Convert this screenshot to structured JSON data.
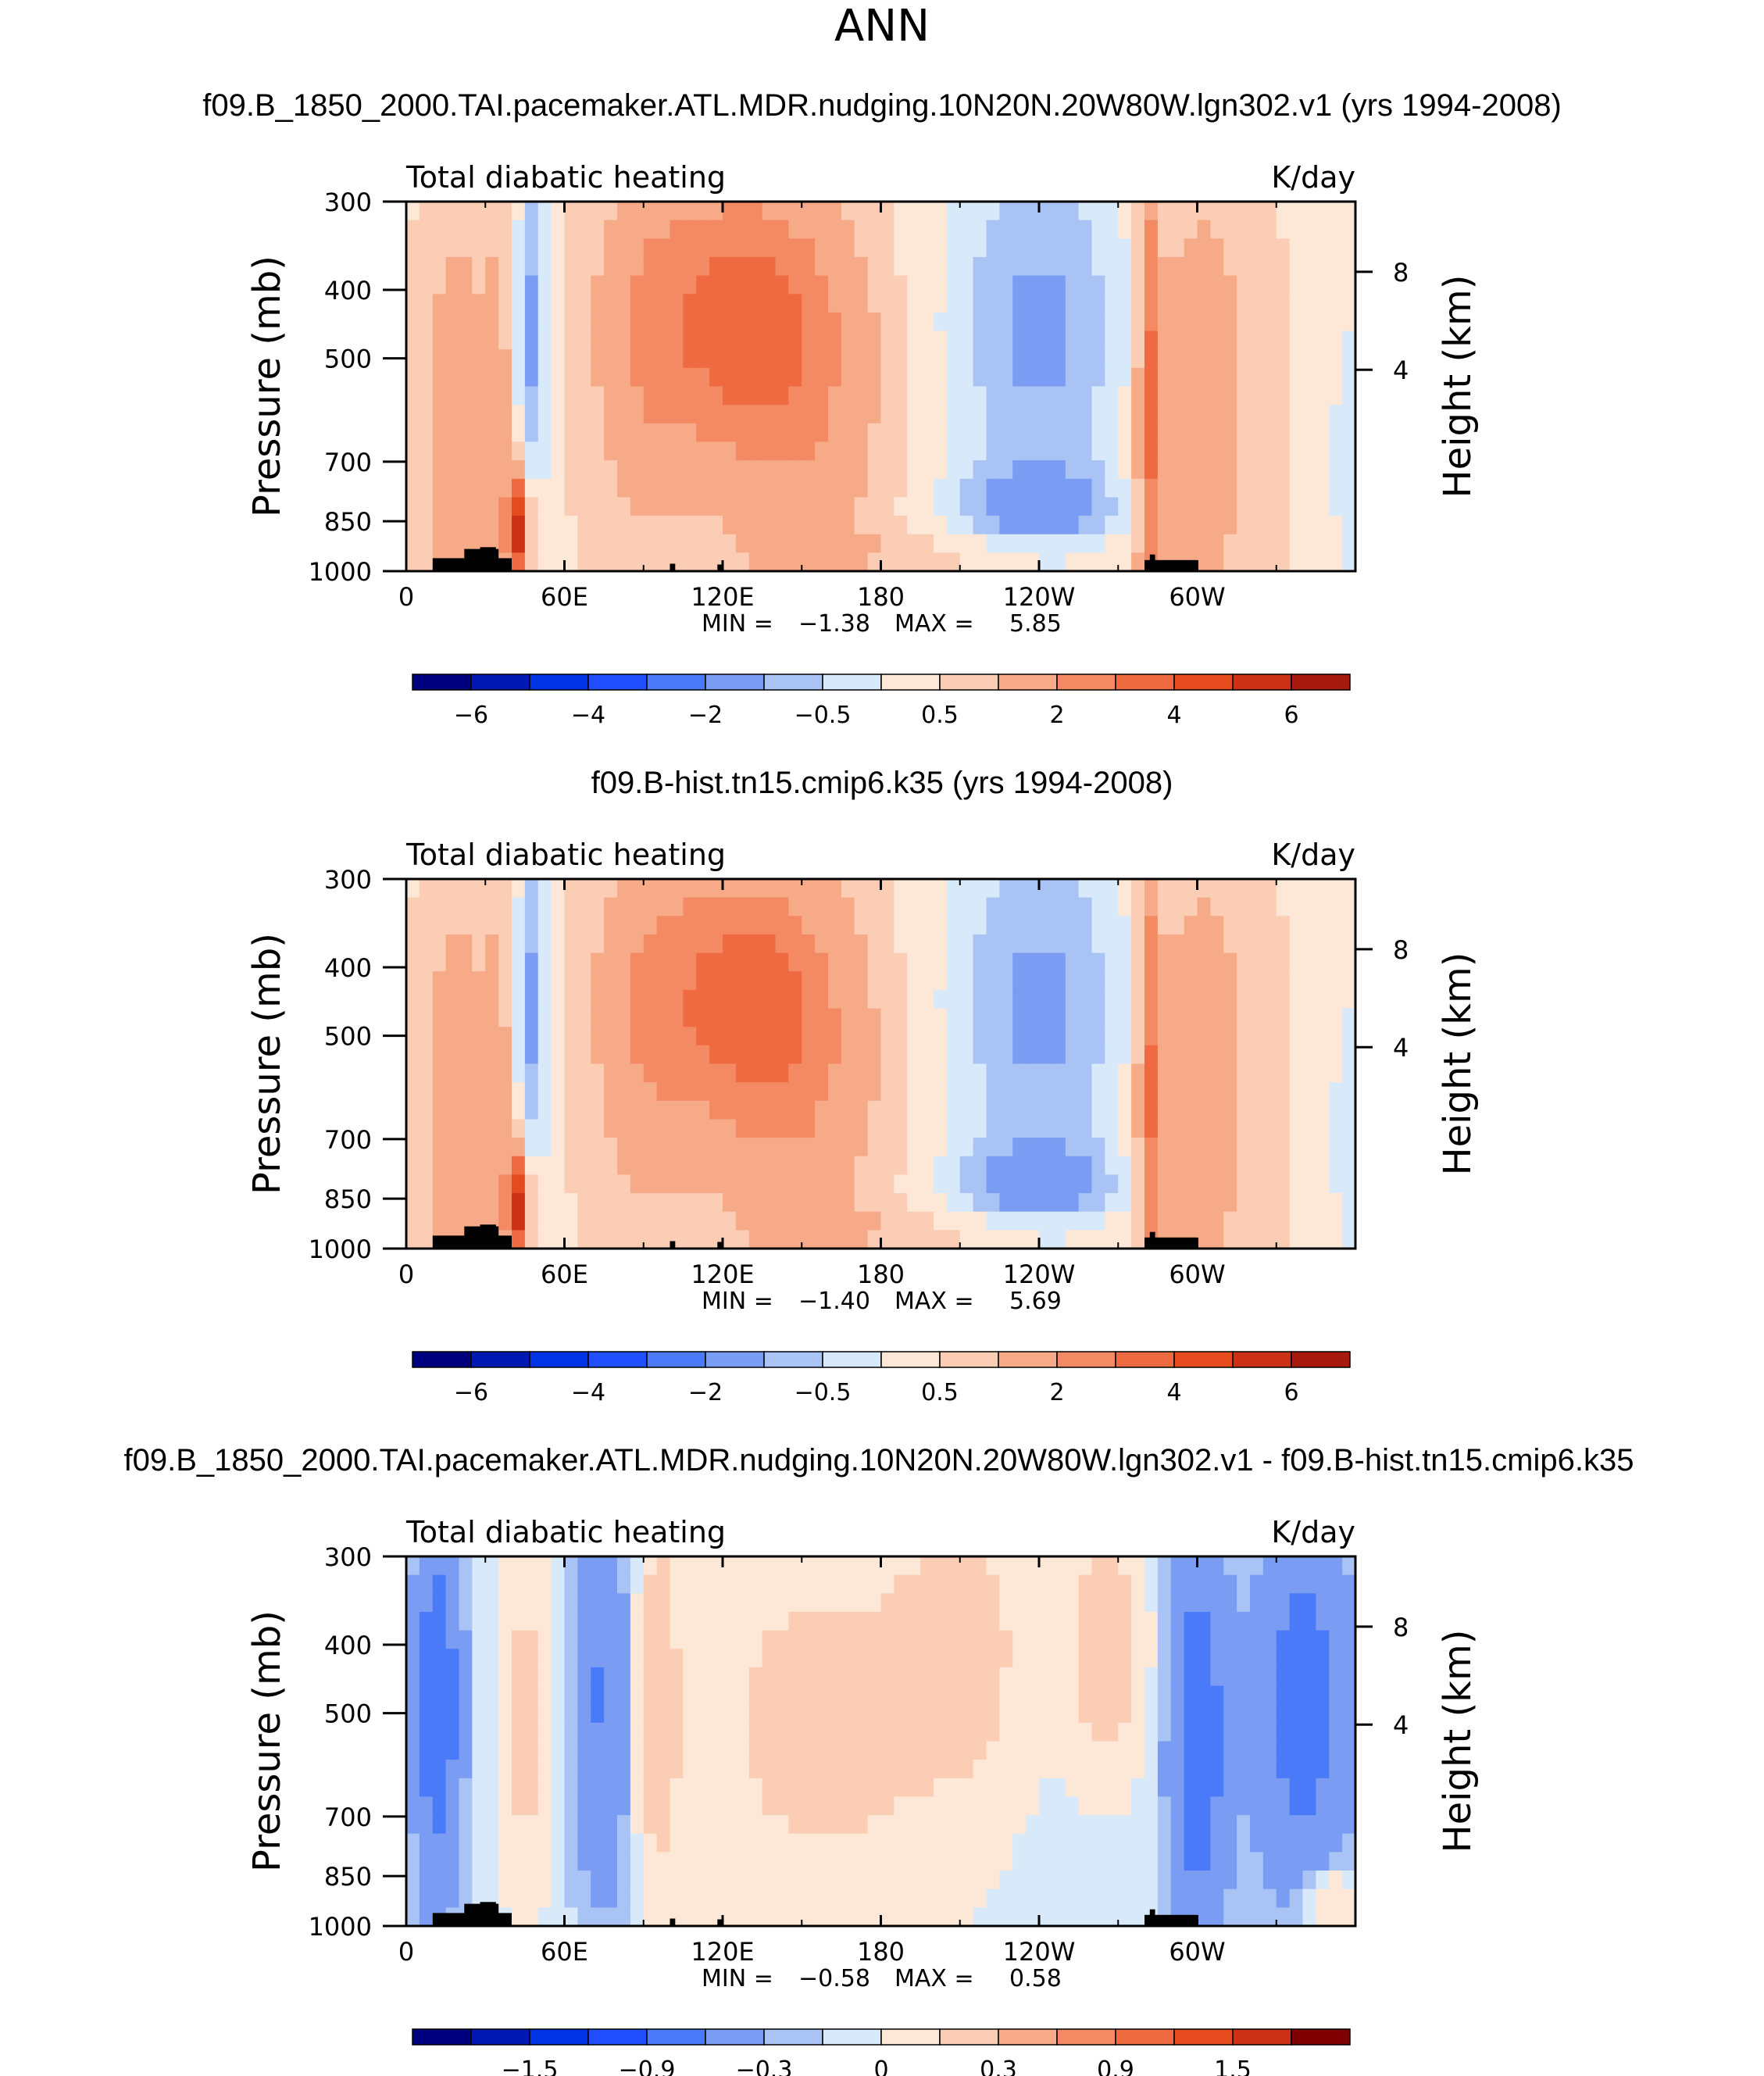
{
  "figure": {
    "main_title": "ANN"
  },
  "colors": {
    "neg_scale": [
      "#00007f",
      "#0019b3",
      "#0033e6",
      "#1f4fff",
      "#4a7af7",
      "#7a9cf2",
      "#a9c3f5",
      "#d8e9fa"
    ],
    "pos_scale": [
      "#fde8d8",
      "#fbcdb4",
      "#f6aa88",
      "#f38a63",
      "#ef6a40",
      "#e64a1f",
      "#cc3116",
      "#a81a0d",
      "#7f0000"
    ],
    "topography": "#000000"
  },
  "chart_data": [
    {
      "type": "heatmap",
      "title": "f09.B_1850_2000.TAI.pacemaker.ATL.MDR.nudging.10N20N.20W80W.lgn302.v1 (yrs 1994-2008)",
      "left_label": "Total diabatic heating",
      "right_label": "K/day",
      "ylabel": "Pressure (mb)",
      "y2label": "Height (km)",
      "x_ticks": [
        "0",
        "60E",
        "120E",
        "180",
        "120W",
        "60W"
      ],
      "x_tick_lon": [
        0,
        60,
        120,
        180,
        240,
        300
      ],
      "xlim": [
        0,
        360
      ],
      "y_ticks": [
        "300",
        "400",
        "500",
        "700",
        "850",
        "1000"
      ],
      "y_tick_values": [
        300,
        400,
        500,
        700,
        850,
        1000
      ],
      "ylim": [
        1000,
        300
      ],
      "y2_ticks": [
        "8",
        "4"
      ],
      "stats_min_label": "MIN =",
      "stats_min": "−1.38",
      "stats_max_label": "MAX =",
      "stats_max": "5.85",
      "colorbar_labels": [
        "−6",
        "−4",
        "−2",
        "−0.5",
        "0.5",
        "2",
        "4",
        "6"
      ],
      "field_max": 5.85,
      "field_min": -1.38
    },
    {
      "type": "heatmap",
      "title": "f09.B-hist.tn15.cmip6.k35 (yrs 1994-2008)",
      "left_label": "Total diabatic heating",
      "right_label": "K/day",
      "ylabel": "Pressure (mb)",
      "y2label": "Height (km)",
      "x_ticks": [
        "0",
        "60E",
        "120E",
        "180",
        "120W",
        "60W"
      ],
      "x_tick_lon": [
        0,
        60,
        120,
        180,
        240,
        300
      ],
      "xlim": [
        0,
        360
      ],
      "y_ticks": [
        "300",
        "400",
        "500",
        "700",
        "850",
        "1000"
      ],
      "y_tick_values": [
        300,
        400,
        500,
        700,
        850,
        1000
      ],
      "ylim": [
        1000,
        300
      ],
      "y2_ticks": [
        "8",
        "4"
      ],
      "stats_min_label": "MIN =",
      "stats_min": "−1.40",
      "stats_max_label": "MAX =",
      "stats_max": "5.69",
      "colorbar_labels": [
        "−6",
        "−4",
        "−2",
        "−0.5",
        "0.5",
        "2",
        "4",
        "6"
      ],
      "field_max": 5.69,
      "field_min": -1.4
    },
    {
      "type": "heatmap",
      "title": "f09.B_1850_2000.TAI.pacemaker.ATL.MDR.nudging.10N20N.20W80W.lgn302.v1 - f09.B-hist.tn15.cmip6.k35",
      "left_label": "Total diabatic heating",
      "right_label": "K/day",
      "ylabel": "Pressure (mb)",
      "y2label": "Height (km)",
      "x_ticks": [
        "0",
        "60E",
        "120E",
        "180",
        "120W",
        "60W"
      ],
      "x_tick_lon": [
        0,
        60,
        120,
        180,
        240,
        300
      ],
      "xlim": [
        0,
        360
      ],
      "y_ticks": [
        "300",
        "400",
        "500",
        "700",
        "850",
        "1000"
      ],
      "y_tick_values": [
        300,
        400,
        500,
        700,
        850,
        1000
      ],
      "ylim": [
        1000,
        300
      ],
      "y2_ticks": [
        "8",
        "4"
      ],
      "stats_min_label": "MIN =",
      "stats_min": "−0.58",
      "stats_max_label": "MAX =",
      "stats_max": "0.58",
      "colorbar_labels": [
        "−1.5",
        "−0.9",
        "−0.3",
        "0",
        "0.3",
        "0.9",
        "1.5"
      ],
      "field_max": 0.58,
      "field_min": -0.58
    }
  ]
}
